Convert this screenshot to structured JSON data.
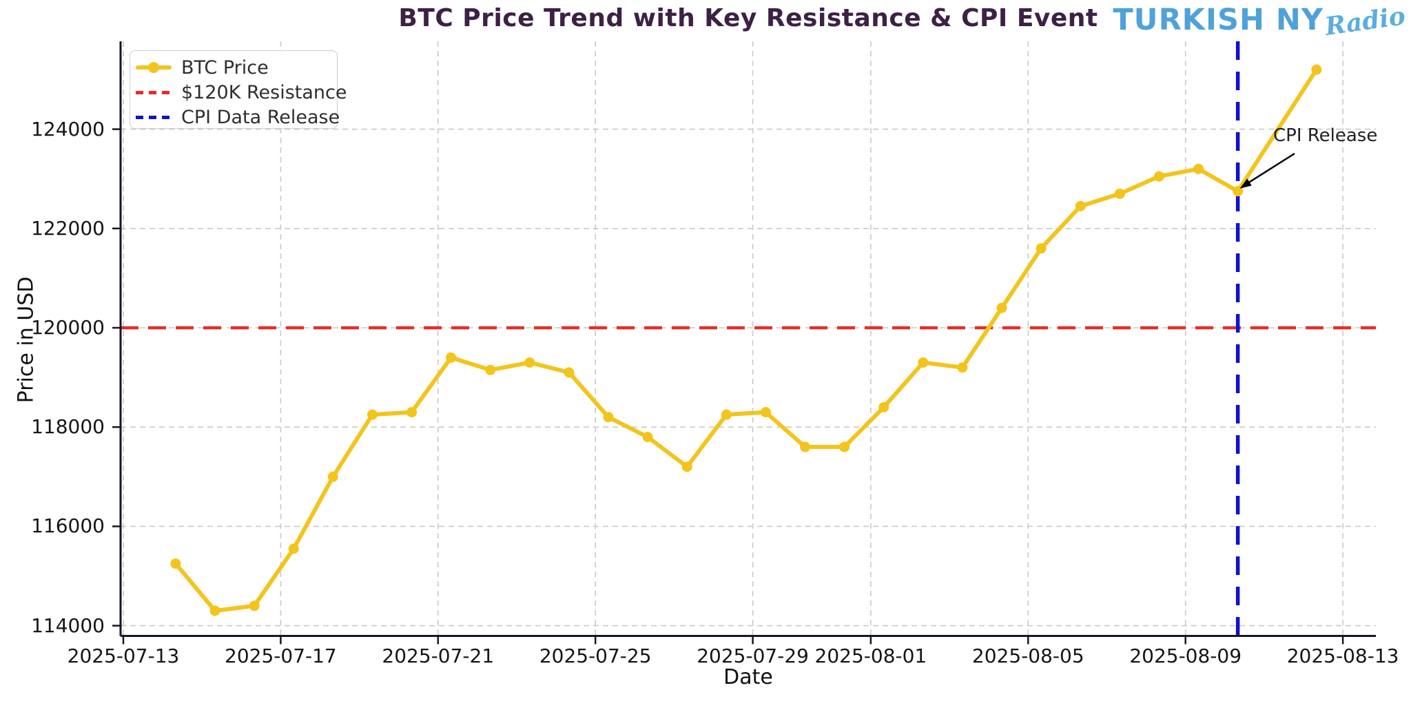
{
  "brand": {
    "name": "TURKISH NY",
    "suffix": "Radio"
  },
  "chart_data": {
    "type": "line",
    "title": "BTC Price Trend with Key Resistance & CPI Event",
    "xlabel": "Date",
    "ylabel": "Price in USD",
    "x_tick_labels": [
      "2025-07-13",
      "2025-07-17",
      "2025-07-21",
      "2025-07-25",
      "2025-07-29",
      "2025-08-01",
      "2025-08-05",
      "2025-08-09",
      "2025-08-13"
    ],
    "y_ticks": [
      114000,
      116000,
      118000,
      120000,
      122000,
      124000
    ],
    "ylim": [
      113800,
      125770
    ],
    "xlim_dates": [
      "2025-07-13",
      "2025-08-13"
    ],
    "grid": true,
    "legend_position": "upper-left",
    "legend": [
      "BTC Price",
      "$120K Resistance",
      "CPI Data Release"
    ],
    "series": [
      {
        "name": "BTC Price",
        "color": "#f3c41c",
        "dates": [
          "2025-07-14",
          "2025-07-15",
          "2025-07-16",
          "2025-07-17",
          "2025-07-18",
          "2025-07-19",
          "2025-07-20",
          "2025-07-21",
          "2025-07-22",
          "2025-07-23",
          "2025-07-24",
          "2025-07-25",
          "2025-07-26",
          "2025-07-27",
          "2025-07-28",
          "2025-07-29",
          "2025-07-30",
          "2025-07-31",
          "2025-08-01",
          "2025-08-02",
          "2025-08-03",
          "2025-08-04",
          "2025-08-05",
          "2025-08-06",
          "2025-08-07",
          "2025-08-08",
          "2025-08-09",
          "2025-08-10",
          "2025-08-12"
        ],
        "values": [
          115250,
          114300,
          114400,
          115550,
          117000,
          118250,
          118300,
          119400,
          119150,
          119300,
          119100,
          118200,
          117800,
          117200,
          118250,
          118300,
          117600,
          117600,
          118400,
          119300,
          119200,
          120400,
          121600,
          122450,
          122700,
          123050,
          123200,
          122750,
          125200
        ]
      }
    ],
    "resistance_line": {
      "label": "$120K Resistance",
      "value": 120000,
      "color": "#ea2c24"
    },
    "event_line": {
      "label": "CPI Data Release",
      "date": "2025-08-10",
      "color": "#1111cf"
    },
    "annotation": {
      "text": "CPI Release",
      "target_date": "2025-08-10",
      "target_value": 122750
    }
  }
}
